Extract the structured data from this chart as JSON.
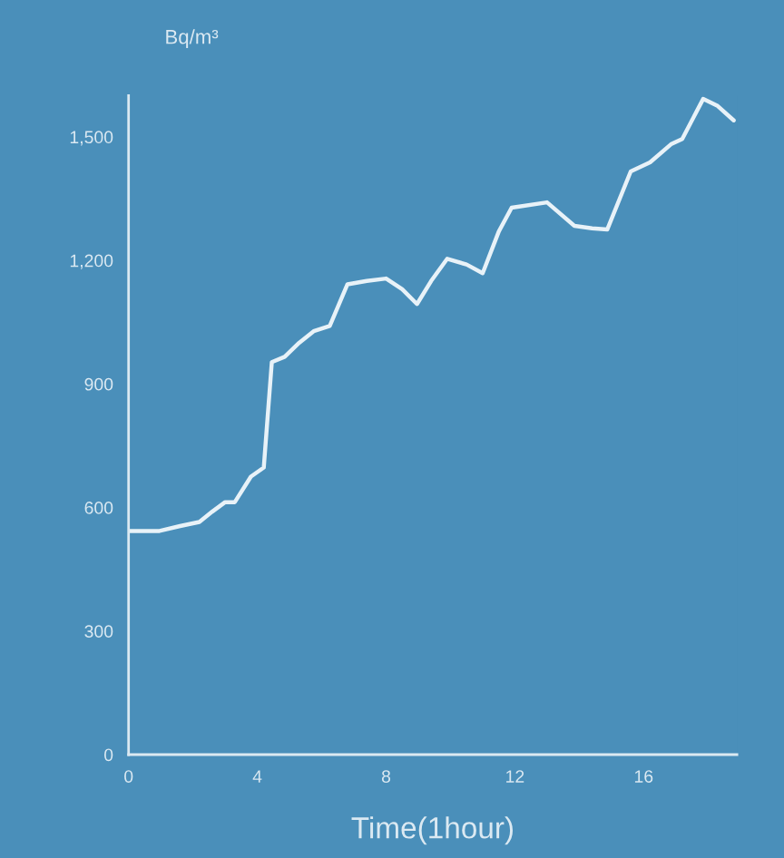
{
  "chart_data": {
    "type": "line",
    "xlabel": "Time(1hour)",
    "ylabel": "Bq/m³",
    "x": [
      0,
      0.5,
      0.96,
      1.6,
      2.2,
      2.6,
      3.0,
      3.3,
      3.8,
      4.2,
      4.45,
      4.85,
      5.3,
      5.75,
      6.25,
      6.8,
      7.4,
      8.0,
      8.5,
      8.96,
      9.4,
      9.9,
      10.5,
      11.0,
      11.5,
      11.9,
      13.0,
      13.85,
      14.4,
      14.87,
      15.6,
      16.2,
      16.85,
      17.2,
      17.85,
      18.3,
      18.8
    ],
    "series": [
      {
        "color": "#e8f2f8",
        "values": [
          543,
          543,
          543,
          555,
          565,
          590,
          613,
          613,
          675,
          697,
          953,
          966,
          1000,
          1028,
          1041,
          1142,
          1150,
          1156,
          1130,
          1094,
          1150,
          1204,
          1190,
          1169,
          1270,
          1328,
          1341,
          1284,
          1278,
          1275,
          1416,
          1438,
          1482,
          1495,
          1592,
          1575,
          1540
        ]
      }
    ],
    "xlim": [
      0,
      18.9
    ],
    "ylim": [
      0,
      1600
    ],
    "xticks": [
      0,
      4,
      8,
      12,
      16
    ],
    "yticks": [
      0,
      {
        "value": 300,
        "label": "300"
      },
      {
        "value": 600,
        "label": "600"
      },
      {
        "value": 900,
        "label": "900"
      },
      {
        "value": 1200,
        "label": "1,200"
      },
      {
        "value": 1500,
        "label": "1,500"
      }
    ],
    "grid": false,
    "legend": false
  }
}
